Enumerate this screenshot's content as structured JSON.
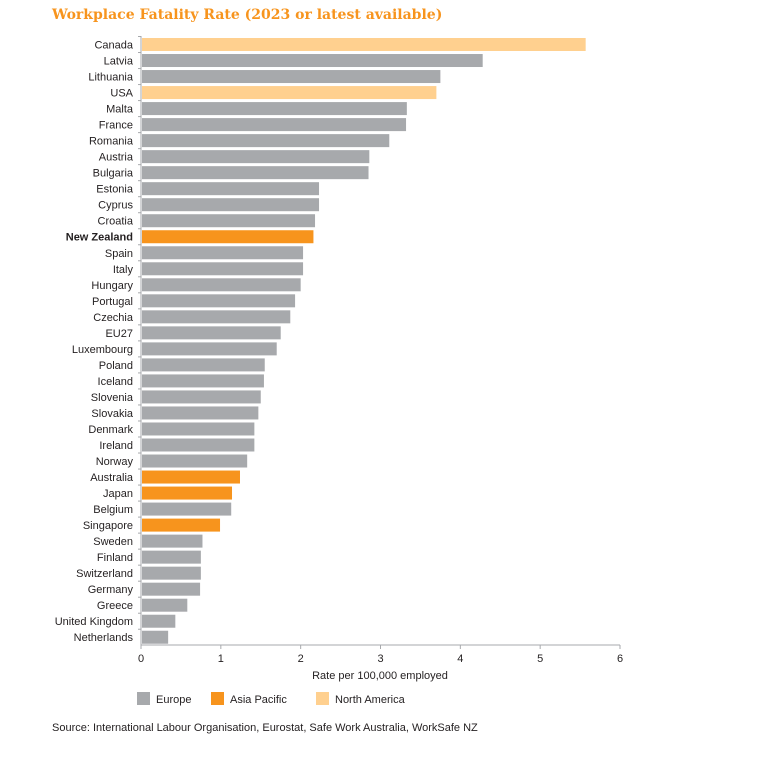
{
  "chart_data": {
    "type": "bar",
    "orientation": "horizontal",
    "title": "Workplace Fatality Rate (2023 or latest available)",
    "xlabel": "Rate per 100,000 employed",
    "ylabel": "",
    "xlim": [
      0,
      6
    ],
    "xticks": [
      "0",
      "1",
      "2",
      "3",
      "4",
      "5",
      "6"
    ],
    "grid": false,
    "legend_position": "bottom-left",
    "highlight_category": "New Zealand",
    "groups": [
      {
        "name": "Europe",
        "color": "#A7A9AC"
      },
      {
        "name": "Asia Pacific",
        "color": "#F7941D"
      },
      {
        "name": "North America",
        "color": "#FFD08F"
      }
    ],
    "categories": [
      "Canada",
      "Latvia",
      "Lithuania",
      "USA",
      "Malta",
      "France",
      "Romania",
      "Austria",
      "Bulgaria",
      "Estonia",
      "Cyprus",
      "Croatia",
      "New Zealand",
      "Spain",
      "Italy",
      "Hungary",
      "Portugal",
      "Czechia",
      "EU27",
      "Luxembourg",
      "Poland",
      "Iceland",
      "Slovenia",
      "Slovakia",
      "Denmark",
      "Ireland",
      "Norway",
      "Australia",
      "Japan",
      "Belgium",
      "Singapore",
      "Sweden",
      "Finland",
      "Switzerland",
      "Germany",
      "Greece",
      "United Kingdom",
      "Netherlands"
    ],
    "values": [
      5.57,
      4.28,
      3.75,
      3.7,
      3.33,
      3.32,
      3.11,
      2.86,
      2.85,
      2.23,
      2.23,
      2.18,
      2.16,
      2.03,
      2.03,
      2.0,
      1.93,
      1.87,
      1.75,
      1.7,
      1.55,
      1.54,
      1.5,
      1.47,
      1.42,
      1.42,
      1.33,
      1.24,
      1.14,
      1.13,
      0.99,
      0.77,
      0.75,
      0.75,
      0.74,
      0.58,
      0.43,
      0.34
    ],
    "region": [
      "North America",
      "Europe",
      "Europe",
      "North America",
      "Europe",
      "Europe",
      "Europe",
      "Europe",
      "Europe",
      "Europe",
      "Europe",
      "Europe",
      "Asia Pacific",
      "Europe",
      "Europe",
      "Europe",
      "Europe",
      "Europe",
      "Europe",
      "Europe",
      "Europe",
      "Europe",
      "Europe",
      "Europe",
      "Europe",
      "Europe",
      "Europe",
      "Asia Pacific",
      "Asia Pacific",
      "Europe",
      "Asia Pacific",
      "Europe",
      "Europe",
      "Europe",
      "Europe",
      "Europe",
      "Europe",
      "Europe"
    ]
  },
  "title_color": "#F7941D",
  "source": "Source: International Labour Organisation, Eurostat, Safe Work Australia, WorkSafe NZ"
}
